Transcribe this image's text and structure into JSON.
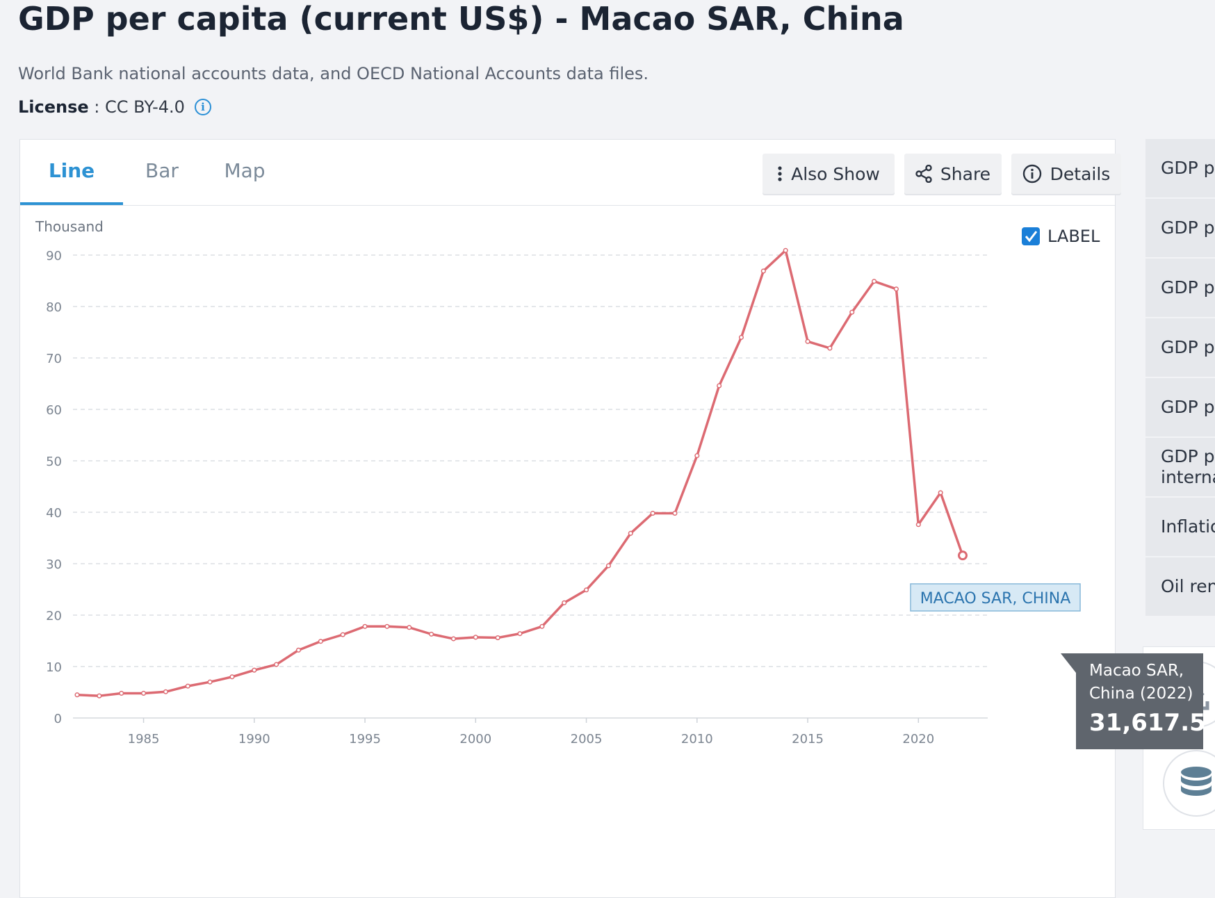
{
  "header": {
    "title": "GDP per capita (current US$) - Macao SAR, China",
    "source": "World Bank national accounts data, and OECD National Accounts data files.",
    "license_label": "License",
    "license_value": " : CC BY-4.0"
  },
  "tabs": [
    {
      "label": "Line",
      "active": true
    },
    {
      "label": "Bar",
      "active": false
    },
    {
      "label": "Map",
      "active": false
    }
  ],
  "toolbar": {
    "also_show": "Also Show",
    "share": "Share",
    "details": "Details"
  },
  "label_toggle": {
    "label": "LABEL",
    "checked": true
  },
  "sidebar": {
    "items": [
      "GDP pe",
      "GDP pe",
      "GDP pe",
      "GDP pe",
      "GDP pe",
      "GDP pe\ninterna",
      "Inflatio",
      "Oil ren"
    ]
  },
  "tooltip": {
    "country": "Macao SAR,",
    "country2": "China (2022)",
    "value": "31,617.5"
  },
  "series_tag": "MACAO SAR, CHINA",
  "colors": {
    "line": "#dc6a72",
    "accent": "#2d92d3",
    "tooltip_bg": "#5f656d"
  },
  "chart_data": {
    "type": "line",
    "unit_label": "Thousand",
    "xlim": [
      1982,
      2022
    ],
    "ylim": [
      0,
      90
    ],
    "x_ticks": [
      1985,
      1990,
      1995,
      2000,
      2005,
      2010,
      2015,
      2020
    ],
    "y_ticks": [
      0,
      10,
      20,
      30,
      40,
      50,
      60,
      70,
      80,
      90
    ],
    "grid": "horizontal-dashed",
    "series": [
      {
        "name": "Macao SAR, China",
        "x": [
          1982,
          1983,
          1984,
          1985,
          1986,
          1987,
          1988,
          1989,
          1990,
          1991,
          1992,
          1993,
          1994,
          1995,
          1996,
          1997,
          1998,
          1999,
          2000,
          2001,
          2002,
          2003,
          2004,
          2005,
          2006,
          2007,
          2008,
          2009,
          2010,
          2011,
          2012,
          2013,
          2014,
          2015,
          2016,
          2017,
          2018,
          2019,
          2020,
          2021,
          2022
        ],
        "y": [
          4.5,
          4.3,
          4.8,
          4.8,
          5.1,
          6.2,
          7.0,
          8.0,
          9.3,
          10.4,
          13.2,
          14.9,
          16.2,
          17.8,
          17.8,
          17.6,
          16.3,
          15.4,
          15.7,
          15.6,
          16.4,
          17.8,
          22.4,
          24.9,
          29.6,
          35.9,
          39.8,
          39.8,
          51.0,
          64.6,
          74.0,
          86.9,
          90.9,
          73.2,
          71.9,
          78.9,
          84.9,
          83.4,
          37.6,
          43.8,
          31.6
        ]
      }
    ]
  }
}
